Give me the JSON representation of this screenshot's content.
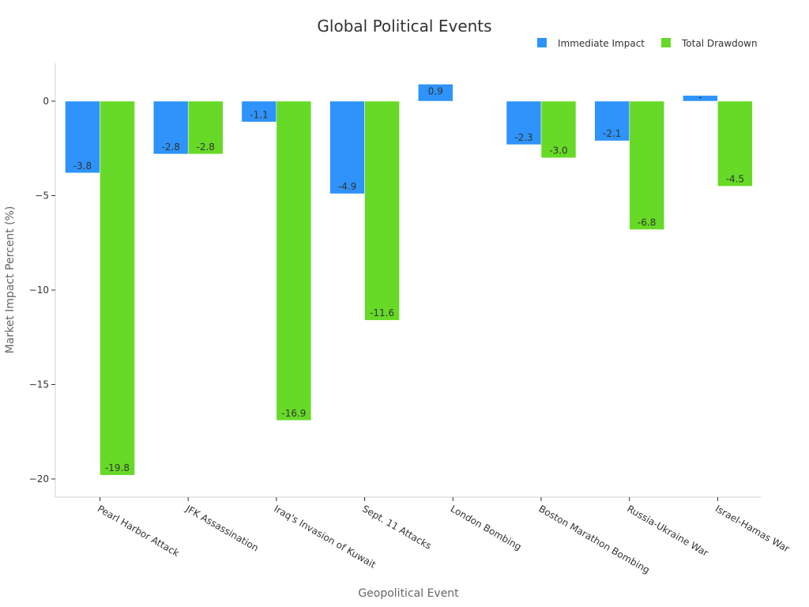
{
  "chart_data": {
    "type": "bar",
    "title": "Global Political Events",
    "xlabel": "Geopolitical Event",
    "ylabel": "Market Impact Percent (%)",
    "categories": [
      "Pearl Harbor Attack",
      "JFK Assassination",
      "Iraq's Invasion of Kuwait",
      "Sept. 11 Attacks",
      "London Bombing",
      "Boston Marathon Bombing",
      "Russia-Ukraine War",
      "Israel-Hamas War"
    ],
    "series": [
      {
        "name": "Immediate Impact",
        "color": "#2e93fa",
        "values": [
          -3.8,
          -2.8,
          -1.1,
          -4.9,
          0.9,
          -2.3,
          -2.1,
          0.3
        ],
        "labels": [
          "-3.8",
          "-2.8",
          "-1.1",
          "-4.9",
          "0.9",
          "-2.3",
          "-2.1",
          "-"
        ]
      },
      {
        "name": "Total Drawdown",
        "color": "#66da26",
        "values": [
          -19.8,
          -2.8,
          -16.9,
          -11.6,
          null,
          -3.0,
          -6.8,
          -4.5
        ],
        "labels": [
          "-19.8",
          "-2.8",
          "-16.9",
          "-11.6",
          "",
          "-3.0",
          "-6.8",
          "-4.5"
        ]
      }
    ],
    "yticks": [
      0,
      -5,
      -10,
      -15,
      -20
    ],
    "ytick_labels": [
      "0",
      "−5",
      "−10",
      "−15",
      "−20"
    ],
    "ylim": [
      -20.95,
      2.0
    ],
    "grid": false,
    "legend_position": "top-right"
  }
}
